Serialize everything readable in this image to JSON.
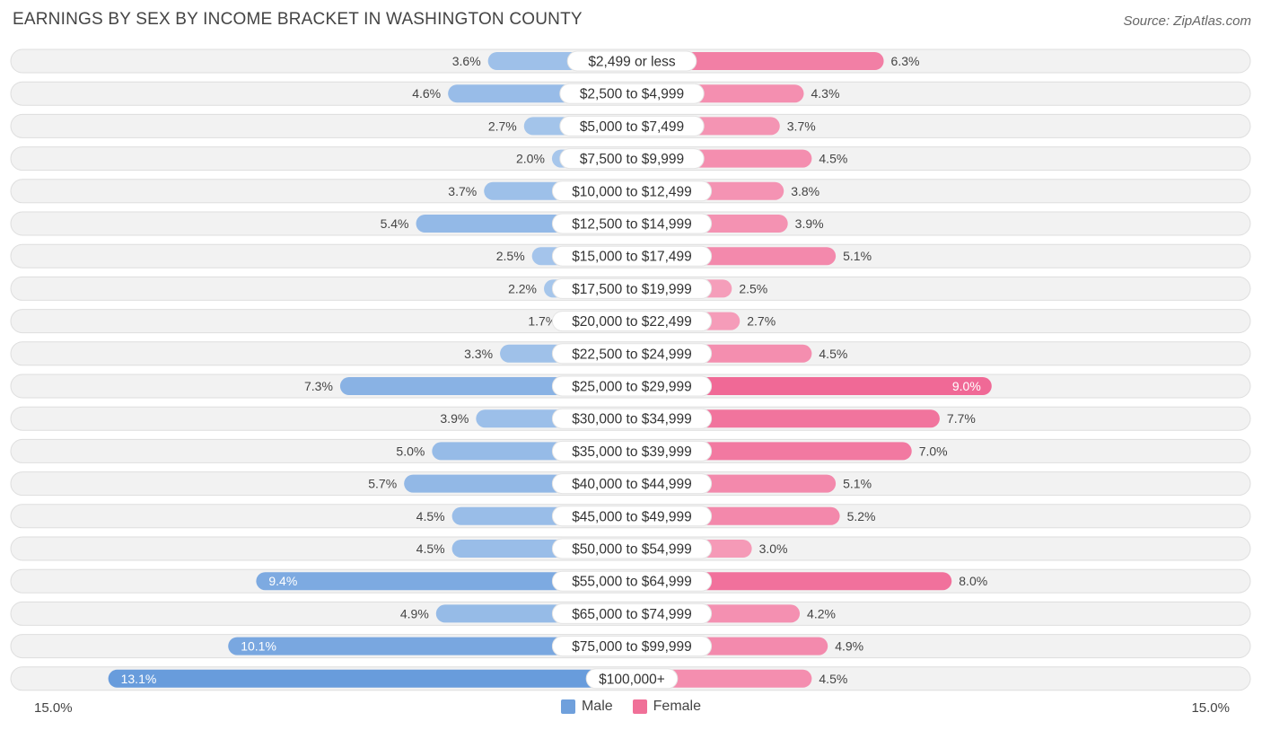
{
  "header": {
    "title": "EARNINGS BY SEX BY INCOME BRACKET IN WASHINGTON COUNTY",
    "source": "Source: ZipAtlas.com"
  },
  "axis": {
    "left_label": "15.0%",
    "right_label": "15.0%"
  },
  "legend": {
    "male_label": "Male",
    "female_label": "Female",
    "male_color": "#6fa0dc",
    "female_color": "#f07098"
  },
  "chart_data": {
    "type": "bar",
    "orientation": "horizontal-diverging",
    "title": "EARNINGS BY SEX BY INCOME BRACKET IN WASHINGTON COUNTY",
    "xlim": [
      -15.0,
      15.0
    ],
    "unit": "%",
    "categories": [
      "$2,499 or less",
      "$2,500 to $4,999",
      "$5,000 to $7,499",
      "$7,500 to $9,999",
      "$10,000 to $12,499",
      "$12,500 to $14,999",
      "$15,000 to $17,499",
      "$17,500 to $19,999",
      "$20,000 to $22,499",
      "$22,500 to $24,999",
      "$25,000 to $29,999",
      "$30,000 to $34,999",
      "$35,000 to $39,999",
      "$40,000 to $44,999",
      "$45,000 to $49,999",
      "$50,000 to $54,999",
      "$55,000 to $64,999",
      "$65,000 to $74,999",
      "$75,000 to $99,999",
      "$100,000+"
    ],
    "series": [
      {
        "name": "Male",
        "values": [
          3.6,
          4.6,
          2.7,
          2.0,
          3.7,
          5.4,
          2.5,
          2.2,
          1.7,
          3.3,
          7.3,
          3.9,
          5.0,
          5.7,
          4.5,
          4.5,
          9.4,
          4.9,
          10.1,
          13.1
        ],
        "labels": [
          "3.6%",
          "4.6%",
          "2.7%",
          "2.0%",
          "3.7%",
          "5.4%",
          "2.5%",
          "2.2%",
          "1.7%",
          "3.3%",
          "7.3%",
          "3.9%",
          "5.0%",
          "5.7%",
          "4.5%",
          "4.5%",
          "9.4%",
          "4.9%",
          "10.1%",
          "13.1%"
        ]
      },
      {
        "name": "Female",
        "values": [
          6.3,
          4.3,
          3.7,
          4.5,
          3.8,
          3.9,
          5.1,
          2.5,
          2.7,
          4.5,
          9.0,
          7.7,
          7.0,
          5.1,
          5.2,
          3.0,
          8.0,
          4.2,
          4.9,
          4.5
        ],
        "labels": [
          "6.3%",
          "4.3%",
          "3.7%",
          "4.5%",
          "3.8%",
          "3.9%",
          "5.1%",
          "2.5%",
          "2.7%",
          "4.5%",
          "9.0%",
          "7.7%",
          "7.0%",
          "5.1%",
          "5.2%",
          "3.0%",
          "8.0%",
          "4.2%",
          "4.9%",
          "4.5%"
        ]
      }
    ]
  }
}
